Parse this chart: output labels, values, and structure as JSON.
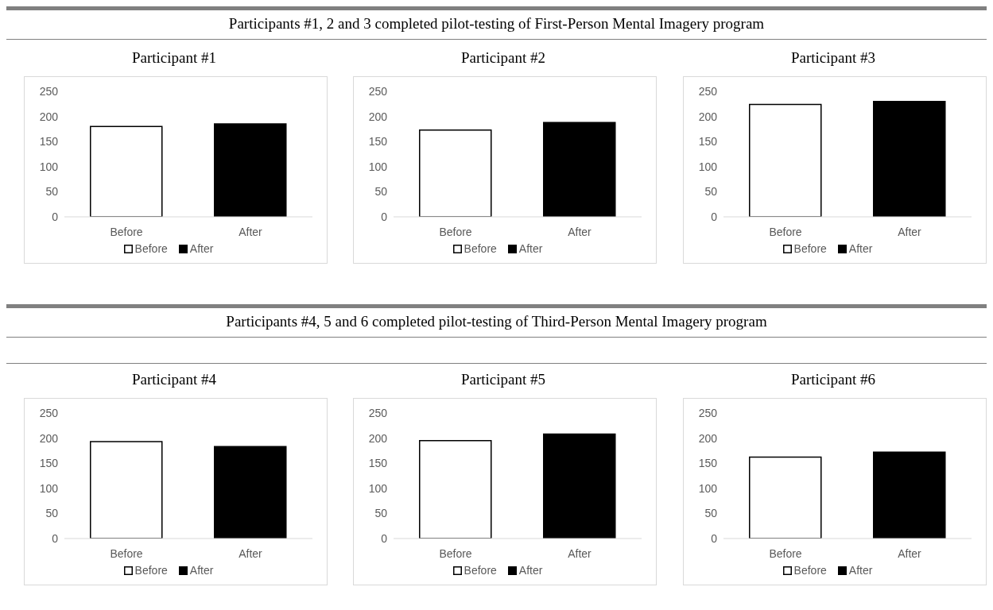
{
  "chart_data": [
    {
      "type": "bar",
      "title": "Participant #1",
      "annotations": [
        "Participants #1, 2 and 3 completed pilot-testing of First-Person Mental Imagery program"
      ],
      "categories": [
        "Before",
        "After"
      ],
      "series": [
        {
          "name": "Before",
          "color": "#ffffff",
          "values": [
            180,
            null
          ]
        },
        {
          "name": "After",
          "color": "#000000",
          "values": [
            null,
            185
          ]
        }
      ],
      "stacked": true,
      "ylim": [
        0,
        250
      ],
      "yticks": [
        0,
        50,
        100,
        150,
        200,
        250
      ],
      "legend": "bottom",
      "grid": false
    },
    {
      "type": "bar",
      "title": "Participant #2",
      "categories": [
        "Before",
        "After"
      ],
      "series": [
        {
          "name": "Before",
          "color": "#ffffff",
          "values": [
            173,
            null
          ]
        },
        {
          "name": "After",
          "color": "#000000",
          "values": [
            null,
            188
          ]
        }
      ],
      "stacked": true,
      "ylim": [
        0,
        250
      ],
      "yticks": [
        0,
        50,
        100,
        150,
        200,
        250
      ],
      "legend": "bottom",
      "grid": false
    },
    {
      "type": "bar",
      "title": "Participant #3",
      "categories": [
        "Before",
        "After"
      ],
      "series": [
        {
          "name": "Before",
          "color": "#ffffff",
          "values": [
            224,
            null
          ]
        },
        {
          "name": "After",
          "color": "#000000",
          "values": [
            null,
            230
          ]
        }
      ],
      "stacked": true,
      "ylim": [
        0,
        250
      ],
      "yticks": [
        0,
        50,
        100,
        150,
        200,
        250
      ],
      "legend": "bottom",
      "grid": false
    },
    {
      "type": "bar",
      "title": "Participant #4",
      "annotations": [
        "Participants #4, 5 and 6 completed pilot-testing of Third-Person Mental Imagery program"
      ],
      "categories": [
        "Before",
        "After"
      ],
      "series": [
        {
          "name": "Before",
          "color": "#ffffff",
          "values": [
            193,
            null
          ]
        },
        {
          "name": "After",
          "color": "#000000",
          "values": [
            null,
            183
          ]
        }
      ],
      "stacked": true,
      "ylim": [
        0,
        250
      ],
      "yticks": [
        0,
        50,
        100,
        150,
        200,
        250
      ],
      "legend": "bottom",
      "grid": false
    },
    {
      "type": "bar",
      "title": "Participant #5",
      "categories": [
        "Before",
        "After"
      ],
      "series": [
        {
          "name": "Before",
          "color": "#ffffff",
          "values": [
            195,
            null
          ]
        },
        {
          "name": "After",
          "color": "#000000",
          "values": [
            null,
            208
          ]
        }
      ],
      "stacked": true,
      "ylim": [
        0,
        250
      ],
      "yticks": [
        0,
        50,
        100,
        150,
        200,
        250
      ],
      "legend": "bottom",
      "grid": false
    },
    {
      "type": "bar",
      "title": "Participant #6",
      "categories": [
        "Before",
        "After"
      ],
      "series": [
        {
          "name": "Before",
          "color": "#ffffff",
          "values": [
            162,
            null
          ]
        },
        {
          "name": "After",
          "color": "#000000",
          "values": [
            null,
            172
          ]
        }
      ],
      "stacked": true,
      "ylim": [
        0,
        250
      ],
      "yticks": [
        0,
        50,
        100,
        150,
        200,
        250
      ],
      "legend": "bottom",
      "grid": false
    }
  ]
}
